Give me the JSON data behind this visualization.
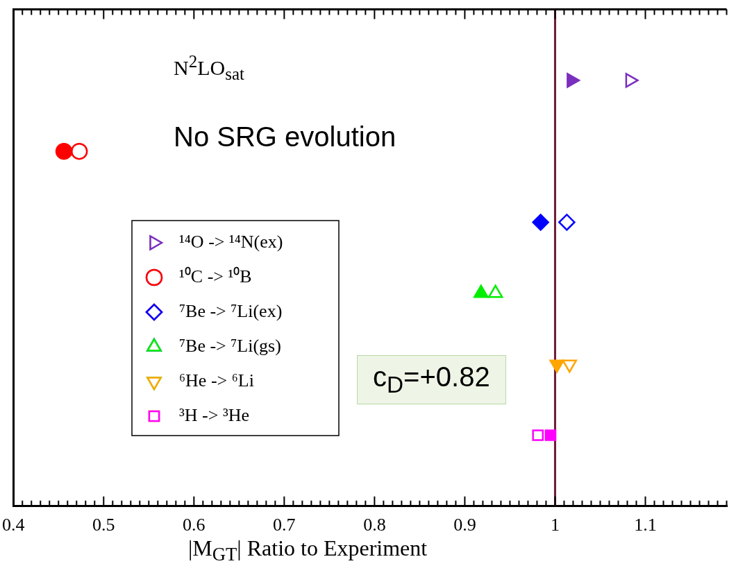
{
  "chart_data": {
    "type": "scatter",
    "orientation": "horizontal",
    "xlabel": "|M$_{GT}$| Ratio to Experiment",
    "categories": [
      null,
      null,
      null,
      null,
      null,
      null
    ],
    "xlim": [
      0.4,
      1.19
    ],
    "xticks": [
      0.4,
      0.5,
      0.6,
      0.7,
      0.8,
      0.9,
      1,
      1.1
    ],
    "legend": "left",
    "grid": false,
    "tick_labels": "x",
    "ref_lines": [
      {
        "axis": "x",
        "value": 1,
        "color": "#6b1a3a"
      }
    ],
    "annotations": [
      "N$^{2}$LO$_{sat}$",
      "No SRG evolution",
      "c$_{D}$=+0.82"
    ],
    "series": [
      {
        "name": "¹⁴O -> ¹⁴N(ex)",
        "color": "#7b2fbe",
        "marker": "triangle",
        "values": [
          1.083,
          null,
          null,
          null,
          null,
          null
        ]
      },
      {
        "name": "¹⁰C -> ¹⁰B",
        "color": "#ff0000",
        "marker": "circle",
        "values": [
          null,
          0.473,
          null,
          null,
          null,
          null
        ]
      },
      {
        "name": "⁷Be -> ⁷Li(ex)",
        "color": "#0000ff",
        "marker": "diamond",
        "values": [
          null,
          null,
          1.013,
          null,
          null,
          null
        ]
      },
      {
        "name": "⁷Be -> ⁷Li(gs)",
        "color": "#00ee00",
        "marker": "triangle",
        "values": [
          null,
          null,
          null,
          0.934,
          null,
          null
        ]
      },
      {
        "name": "⁶He -> ⁶Li",
        "color": "#ffa500",
        "marker": "triangle",
        "values": [
          null,
          null,
          null,
          null,
          1.016,
          null
        ]
      },
      {
        "name": "³H -> ³He",
        "color": "#ff00ff",
        "marker": "square",
        "values": [
          null,
          null,
          null,
          null,
          null,
          0.981
        ]
      },
      {
        "color": "#7b2fbe",
        "marker": "triangle",
        "values": [
          1.018,
          null,
          null,
          null,
          null,
          null
        ]
      },
      {
        "color": "#ff0000",
        "marker": "circle",
        "values": [
          null,
          0.456,
          null,
          null,
          null,
          null
        ]
      },
      {
        "color": "#0000ff",
        "marker": "diamond",
        "values": [
          null,
          null,
          0.984,
          null,
          null,
          null
        ]
      },
      {
        "color": "#00ee00",
        "marker": "triangle",
        "values": [
          null,
          null,
          null,
          0.918,
          null,
          null
        ]
      },
      {
        "color": "#ffa500",
        "marker": "triangle",
        "values": [
          null,
          null,
          null,
          null,
          1.002,
          null
        ]
      },
      {
        "color": "#ff00ff",
        "marker": "square",
        "values": [
          null,
          null,
          null,
          null,
          null,
          0.995
        ]
      }
    ]
  }
}
